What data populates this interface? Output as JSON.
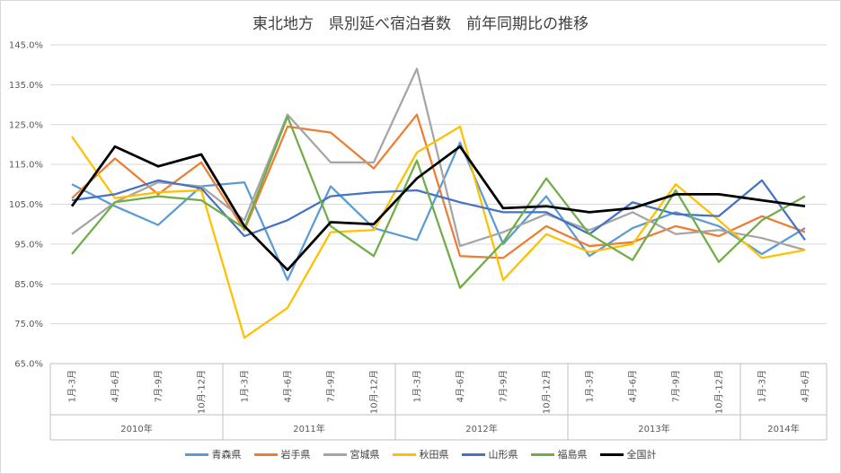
{
  "chart_data": {
    "type": "line",
    "title": "東北地方　県別延べ宿泊者数　前年同期比の推移",
    "ylim": [
      65,
      145
    ],
    "yticks": [
      "65.0%",
      "75.0%",
      "85.0%",
      "95.0%",
      "105.0%",
      "115.0%",
      "125.0%",
      "135.0%",
      "145.0%"
    ],
    "categories": [
      "1月-3月",
      "4月-6月",
      "7月-9月",
      "10月-12月",
      "1月-3月",
      "4月-6月",
      "7月-9月",
      "10月-12月",
      "1月-3月",
      "4月-6月",
      "7月-9月",
      "10月-12月",
      "1月-3月",
      "4月-6月",
      "7月-9月",
      "10月-12月",
      "1月-3月",
      "4月-6月"
    ],
    "groups": [
      {
        "label": "2010年",
        "count": 4
      },
      {
        "label": "2011年",
        "count": 4
      },
      {
        "label": "2012年",
        "count": 4
      },
      {
        "label": "2013年",
        "count": 4
      },
      {
        "label": "2014年",
        "count": 2
      }
    ],
    "series": [
      {
        "name": "青森県",
        "color": "#5b9bd5",
        "values": [
          110,
          104.5,
          99.8,
          109.5,
          110.5,
          86,
          109.5,
          99,
          96,
          120.5,
          95,
          107,
          92,
          99,
          103,
          99.5,
          92.5,
          99
        ]
      },
      {
        "name": "岩手県",
        "color": "#ed7d31",
        "values": [
          106.5,
          116.5,
          107.5,
          115.5,
          98.5,
          124.5,
          123,
          114,
          127.5,
          92,
          91.5,
          99.5,
          94.5,
          95.5,
          99.5,
          97,
          102,
          98
        ]
      },
      {
        "name": "宮城県",
        "color": "#a5a5a5",
        "values": [
          97.5,
          105.5,
          110.5,
          109.5,
          101,
          127.5,
          115.5,
          115.5,
          139,
          94.5,
          98,
          102.5,
          98.5,
          103,
          97.5,
          98.5,
          96.5,
          93.5
        ]
      },
      {
        "name": "秋田県",
        "color": "#ffc000",
        "values": [
          122,
          106.5,
          108,
          108.5,
          71.5,
          79,
          98,
          98.5,
          118,
          124.5,
          86,
          97.5,
          93,
          95,
          110,
          101,
          91.5,
          93.5
        ]
      },
      {
        "name": "山形県",
        "color": "#4472c4",
        "values": [
          106,
          107.5,
          111,
          109,
          97,
          101,
          107,
          108,
          108.5,
          105.5,
          103,
          103,
          97.5,
          105.5,
          102.5,
          102,
          111,
          96
        ]
      },
      {
        "name": "福島県",
        "color": "#70ad47",
        "values": [
          92.5,
          105.5,
          107,
          106,
          99,
          127,
          99.5,
          92,
          116,
          84,
          95.5,
          111.5,
          97.5,
          91,
          108.5,
          90.5,
          101,
          107
        ]
      },
      {
        "name": "全国計",
        "color": "#000000",
        "values": [
          104.5,
          119.5,
          114.5,
          117.5,
          99.5,
          88.5,
          100.5,
          100,
          111.5,
          119.5,
          104,
          104.5,
          103,
          104,
          107.5,
          107.5,
          106,
          104.5
        ]
      }
    ]
  }
}
